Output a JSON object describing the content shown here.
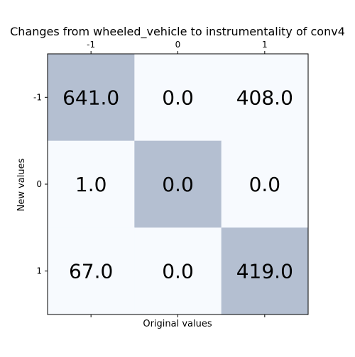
{
  "chart_data": {
    "type": "heatmap",
    "title": "Changes from wheeled_vehicle to instrumentality of conv4",
    "xlabel": "Original values",
    "ylabel": "New values",
    "x_categories": [
      "-1",
      "0",
      "1"
    ],
    "y_categories": [
      "-1",
      "0",
      "1"
    ],
    "values": [
      [
        641.0,
        0.0,
        408.0
      ],
      [
        1.0,
        0.0,
        0.0
      ],
      [
        67.0,
        0.0,
        419.0
      ]
    ],
    "value_labels": [
      [
        "641.0",
        "0.0",
        "408.0"
      ],
      [
        "1.0",
        "0.0",
        "0.0"
      ],
      [
        "67.0",
        "0.0",
        "419.0"
      ]
    ],
    "highlight_mask": [
      [
        true,
        false,
        false
      ],
      [
        false,
        true,
        false
      ],
      [
        false,
        false,
        true
      ]
    ],
    "x_tick_position": "top",
    "y_tick_position": "left",
    "grid": false,
    "legend": "none",
    "colors": {
      "highlight": "#b4bfd1",
      "background": "#f7fafe",
      "frame": "#000000"
    }
  }
}
